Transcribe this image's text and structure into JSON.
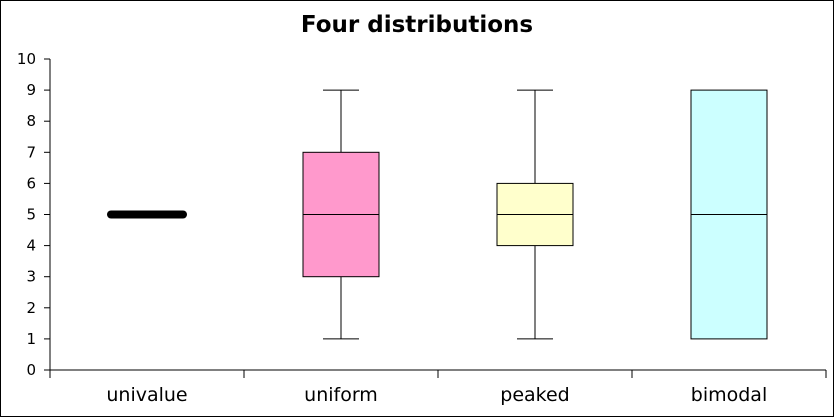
{
  "chart_data": {
    "type": "box",
    "title": "Four distributions",
    "xlabel": "",
    "ylabel": "",
    "ylim": [
      0,
      10
    ],
    "yticks": [
      0,
      1,
      2,
      3,
      4,
      5,
      6,
      7,
      8,
      9,
      10
    ],
    "grid": false,
    "legend": "none",
    "categories": [
      "univalue",
      "uniform",
      "peaked",
      "bimodal"
    ],
    "boxes": [
      {
        "category": "univalue",
        "min": 5,
        "q1": 5,
        "median": 5,
        "q3": 5,
        "max": 5,
        "color": "#000000"
      },
      {
        "category": "uniform",
        "min": 1,
        "q1": 3,
        "median": 5,
        "q3": 7,
        "max": 9,
        "color": "#ff99cc"
      },
      {
        "category": "peaked",
        "min": 1,
        "q1": 4,
        "median": 5,
        "q3": 6,
        "max": 9,
        "color": "#ffffcc"
      },
      {
        "category": "bimodal",
        "min": 1,
        "q1": 1,
        "median": 5,
        "q3": 9,
        "max": 9,
        "color": "#ccffff"
      }
    ]
  }
}
